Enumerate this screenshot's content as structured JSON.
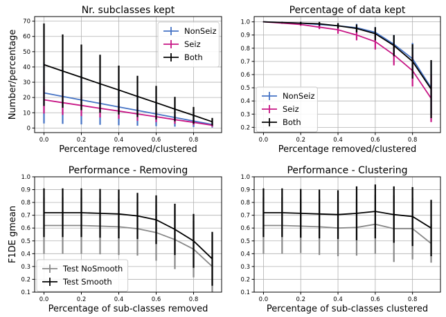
{
  "chart_data": [
    {
      "type": "line",
      "title": "Nr. subclasses kept",
      "xlabel": "Percentage removed/clustered",
      "ylabel": "Number/percentage",
      "x": [
        0,
        0.1,
        0.2,
        0.3,
        0.4,
        0.5,
        0.6,
        0.7,
        0.8,
        0.9
      ],
      "xlim": [
        -0.05,
        0.95
      ],
      "ylim": [
        -3,
        73
      ],
      "xticks": [
        0,
        0.2,
        0.4,
        0.6,
        0.8
      ],
      "xticklabels": [
        "0.0",
        "0.2",
        "0.4",
        "0.6",
        "0.8"
      ],
      "yticks": [
        0,
        10,
        20,
        30,
        40,
        50,
        60,
        70
      ],
      "yticklabels": [
        "0",
        "10",
        "20",
        "30",
        "40",
        "50",
        "60",
        "70"
      ],
      "grid": true,
      "legend": "top-right",
      "series": [
        {
          "name": "NonSeiz",
          "color": "#4472c4",
          "values": [
            23,
            20.7,
            18.4,
            16.1,
            13.8,
            11.5,
            9.2,
            6.9,
            4.6,
            2.3
          ],
          "err": [
            20,
            18,
            16,
            14,
            12,
            10,
            8,
            6,
            4,
            2
          ]
        },
        {
          "name": "Seiz",
          "color": "#c71585",
          "values": [
            18.5,
            16.6,
            14.8,
            12.9,
            11.1,
            9.2,
            7.4,
            5.5,
            3.7,
            1.8
          ],
          "err": [
            9,
            8,
            7,
            6,
            5,
            4.5,
            3.5,
            2.7,
            1.8,
            1
          ]
        },
        {
          "name": "Both",
          "color": "#000000",
          "values": [
            41.5,
            37.3,
            33.2,
            29.0,
            24.9,
            20.7,
            16.6,
            12.4,
            8.3,
            4.1
          ],
          "err": [
            27,
            24,
            21.5,
            19,
            16,
            13.5,
            11,
            8,
            5.5,
            2.5
          ]
        }
      ]
    },
    {
      "type": "line",
      "title": "Percentage of data kept",
      "xlabel": "Percentage removed/clustered",
      "ylabel": "",
      "x": [
        0,
        0.1,
        0.2,
        0.3,
        0.4,
        0.5,
        0.6,
        0.7,
        0.8,
        0.9
      ],
      "xlim": [
        -0.05,
        0.95
      ],
      "ylim": [
        0.16,
        1.04
      ],
      "xticks": [
        0,
        0.2,
        0.4,
        0.6,
        0.8
      ],
      "xticklabels": [
        "0.0",
        "0.2",
        "0.4",
        "0.6",
        "0.8"
      ],
      "yticks": [
        0.2,
        0.3,
        0.4,
        0.5,
        0.6,
        0.7,
        0.8,
        0.9,
        1.0
      ],
      "yticklabels": [
        "0.2",
        "0.3",
        "0.4",
        "0.5",
        "0.6",
        "0.7",
        "0.8",
        "0.9",
        "1.0"
      ],
      "grid": true,
      "legend": "bottom-left",
      "series": [
        {
          "name": "NonSeiz",
          "color": "#4472c4",
          "values": [
            1.0,
            0.995,
            0.99,
            0.98,
            0.97,
            0.955,
            0.92,
            0.83,
            0.72,
            0.5
          ],
          "err": [
            0,
            0.005,
            0.01,
            0.015,
            0.02,
            0.03,
            0.04,
            0.07,
            0.12,
            0.2
          ]
        },
        {
          "name": "Seiz",
          "color": "#c71585",
          "values": [
            1.0,
            0.99,
            0.98,
            0.96,
            0.94,
            0.9,
            0.85,
            0.75,
            0.63,
            0.42
          ],
          "err": [
            0,
            0.005,
            0.01,
            0.015,
            0.03,
            0.04,
            0.06,
            0.08,
            0.12,
            0.18
          ]
        },
        {
          "name": "Both",
          "color": "#000000",
          "values": [
            1.0,
            0.995,
            0.99,
            0.985,
            0.97,
            0.95,
            0.91,
            0.82,
            0.7,
            0.49
          ],
          "err": [
            0,
            0.005,
            0.01,
            0.015,
            0.02,
            0.03,
            0.05,
            0.08,
            0.13,
            0.22
          ]
        }
      ]
    },
    {
      "type": "line",
      "title": "Performance - Removing",
      "xlabel": "Percentage of sub-classes removed",
      "ylabel": "F1DE gmean",
      "x": [
        0,
        0.1,
        0.2,
        0.3,
        0.4,
        0.5,
        0.6,
        0.7,
        0.8,
        0.9
      ],
      "xlim": [
        -0.05,
        0.95
      ],
      "ylim": [
        0.1,
        1.0
      ],
      "xticks": [
        0,
        0.2,
        0.4,
        0.6,
        0.8
      ],
      "xticklabels": [
        "0.0",
        "0.2",
        "0.4",
        "0.6",
        "0.8"
      ],
      "yticks": [
        0.1,
        0.2,
        0.3,
        0.4,
        0.5,
        0.6,
        0.7,
        0.8,
        0.9,
        1.0
      ],
      "yticklabels": [
        "0.1",
        "0.2",
        "0.3",
        "0.4",
        "0.5",
        "0.6",
        "0.7",
        "0.8",
        "0.9",
        "1.0"
      ],
      "grid": true,
      "legend": "bottom-left",
      "series": [
        {
          "name": "Test NoSmooth",
          "color": "#888888",
          "values": [
            0.62,
            0.62,
            0.62,
            0.615,
            0.61,
            0.595,
            0.565,
            0.51,
            0.435,
            0.3
          ],
          "err": [
            0.22,
            0.22,
            0.22,
            0.22,
            0.22,
            0.21,
            0.22,
            0.23,
            0.22,
            0.2
          ]
        },
        {
          "name": "Test Smooth",
          "color": "#000000",
          "values": [
            0.72,
            0.72,
            0.72,
            0.715,
            0.71,
            0.695,
            0.665,
            0.59,
            0.5,
            0.36
          ],
          "err": [
            0.19,
            0.19,
            0.19,
            0.19,
            0.19,
            0.18,
            0.19,
            0.2,
            0.21,
            0.21
          ]
        }
      ]
    },
    {
      "type": "line",
      "title": "Performance - Clustering",
      "xlabel": "Percentage of sub-classes clustered",
      "ylabel": "",
      "x": [
        0,
        0.1,
        0.2,
        0.3,
        0.4,
        0.5,
        0.6,
        0.7,
        0.8,
        0.9
      ],
      "xlim": [
        -0.05,
        0.95
      ],
      "ylim": [
        0.1,
        1.0
      ],
      "xticks": [
        0,
        0.2,
        0.4,
        0.6,
        0.8
      ],
      "xticklabels": [
        "0.0",
        "0.2",
        "0.4",
        "0.6",
        "0.8"
      ],
      "yticks": [
        0.1,
        0.2,
        0.3,
        0.4,
        0.5,
        0.6,
        0.7,
        0.8,
        0.9,
        1.0
      ],
      "yticklabels": [
        "0.1",
        "0.2",
        "0.3",
        "0.4",
        "0.5",
        "0.6",
        "0.7",
        "0.8",
        "0.9",
        "1.0"
      ],
      "grid": true,
      "legend": "none",
      "series": [
        {
          "name": "Test NoSmooth",
          "color": "#888888",
          "values": [
            0.62,
            0.62,
            0.615,
            0.61,
            0.6,
            0.605,
            0.63,
            0.595,
            0.595,
            0.48
          ],
          "err": [
            0.22,
            0.22,
            0.21,
            0.22,
            0.22,
            0.22,
            0.23,
            0.26,
            0.24,
            0.15
          ]
        },
        {
          "name": "Test Smooth",
          "color": "#000000",
          "values": [
            0.72,
            0.72,
            0.715,
            0.71,
            0.705,
            0.715,
            0.73,
            0.705,
            0.69,
            0.6
          ],
          "err": [
            0.19,
            0.19,
            0.19,
            0.19,
            0.19,
            0.21,
            0.21,
            0.22,
            0.23,
            0.22
          ]
        }
      ]
    }
  ]
}
